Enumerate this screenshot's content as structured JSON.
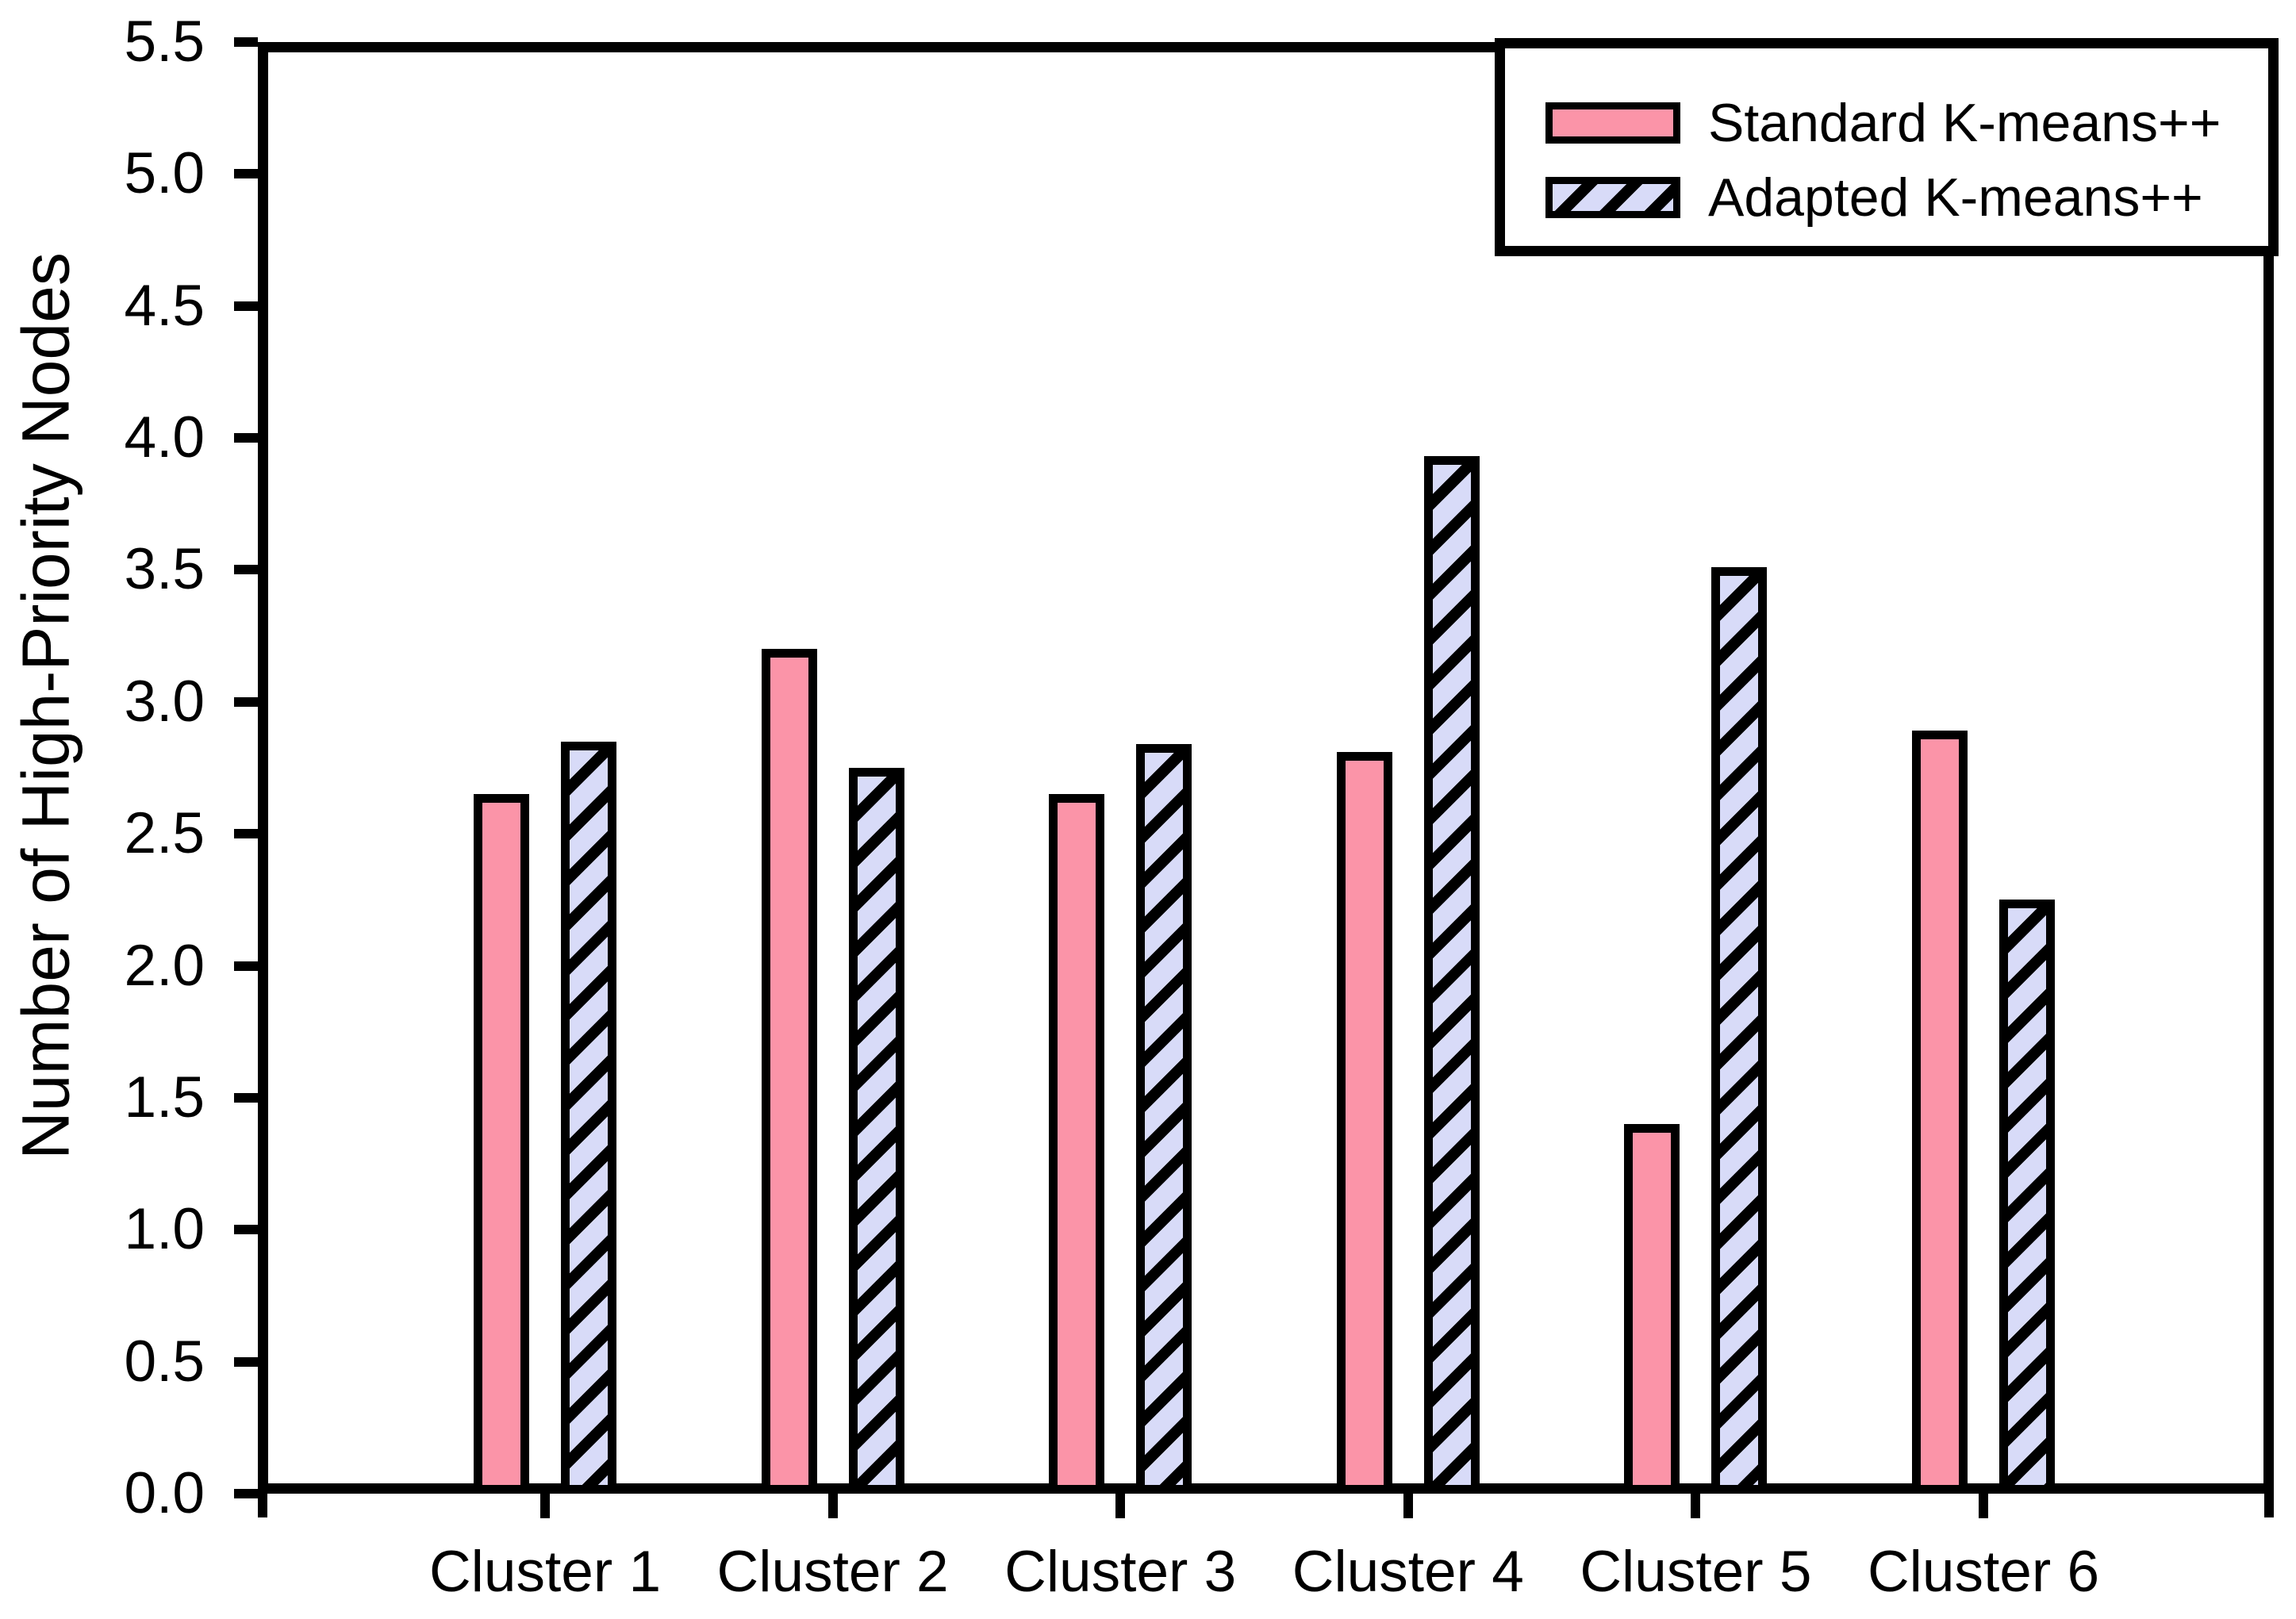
{
  "chart_data": {
    "type": "bar",
    "title": "",
    "xlabel": "",
    "ylabel": "Number of High-Priority Nodes",
    "categories": [
      "Cluster 1",
      "Cluster 2",
      "Cluster 3",
      "Cluster 4",
      "Cluster 5",
      "Cluster 6"
    ],
    "series": [
      {
        "name": "Standard K-means++",
        "style": "solid",
        "color": "#FB94A8",
        "edge_color": "#000000",
        "values": [
          2.65,
          3.2,
          2.65,
          2.81,
          1.4,
          2.89
        ]
      },
      {
        "name": "Adapted K-means++",
        "style": "hatched-diagonal",
        "color": "#D8DBF8",
        "hatch_color": "#000000",
        "edge_color": "#000000",
        "values": [
          2.85,
          2.75,
          2.84,
          3.93,
          3.51,
          2.25
        ]
      }
    ],
    "ylim": [
      0.0,
      5.5
    ],
    "ytick_step": 0.5,
    "ytick_labels": [
      "0.0",
      "0.5",
      "1.0",
      "1.5",
      "2.0",
      "2.5",
      "3.0",
      "3.5",
      "4.0",
      "4.5",
      "5.0",
      "5.5"
    ],
    "grid": false,
    "legend_position": "top-right",
    "plot_background": "#FFFFFF",
    "axis_color": "#000000"
  }
}
